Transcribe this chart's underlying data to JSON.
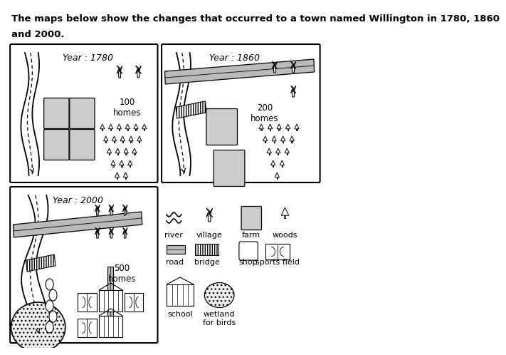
{
  "title_line1": "The maps below show the changes that occurred to a town named Willington in 1780, 1860",
  "title_line2": "and 2000.",
  "bg_color": "#ffffff",
  "farm_color": "#cccccc",
  "road_color": "#bbbbbb"
}
